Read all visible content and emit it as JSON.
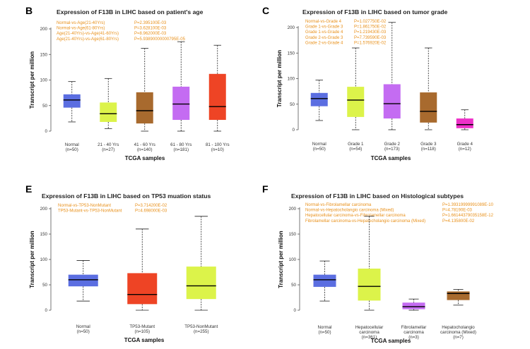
{
  "chart_data": [
    {
      "type": "boxplot",
      "panel": "B",
      "title": "Expression of F13B in LIHC based on patient's age",
      "xlabel": "TCGA samples",
      "ylabel": "Transcript per million",
      "ylim": [
        0,
        200
      ],
      "yticks": [
        0,
        50,
        100,
        150,
        200
      ],
      "annotations": [
        {
          "label": "Normal-vs-Age(21-40Yrs)",
          "p": "P=2.395100E-03"
        },
        {
          "label": "Normal-vs-Age(61-80Yrs)",
          "p": "P=3.628100E-03"
        },
        {
          "label": "Age(21-40Yrs)-vs-Age(41-60Yrs)",
          "p": "P=8.962000E-03"
        },
        {
          "label": "Age(21-40Yrs)-vs-Age(61-80Yrs)",
          "p": "P=5.93890000000795E-05"
        }
      ],
      "boxes": [
        {
          "label": "Normal",
          "n": "(n=50)",
          "color": "#5b6ee1",
          "min": 18,
          "q1": 46,
          "median": 61,
          "q3": 72,
          "max": 97
        },
        {
          "label": "21 - 40 Yrs",
          "n": "(n=27)",
          "color": "#dcf34a",
          "min": 5,
          "q1": 18,
          "median": 34,
          "q3": 56,
          "max": 103
        },
        {
          "label": "41 - 60 Yrs",
          "n": "(n=140)",
          "color": "#a86a2e",
          "min": 0,
          "q1": 15,
          "median": 40,
          "q3": 76,
          "max": 162
        },
        {
          "label": "61 - 80 Yrs",
          "n": "(n=181)",
          "color": "#c46cf2",
          "min": 0,
          "q1": 22,
          "median": 53,
          "q3": 87,
          "max": 175
        },
        {
          "label": "81 - 100 Yrs",
          "n": "(n=10)",
          "color": "#ee4425",
          "min": 0,
          "q1": 22,
          "median": 48,
          "q3": 112,
          "max": 168
        }
      ]
    },
    {
      "type": "boxplot",
      "panel": "C",
      "title": "Expression of F13B in LIHC based on tumor grade",
      "xlabel": "TCGA samples",
      "ylabel": "Transcript per million",
      "ylim": [
        0,
        200
      ],
      "yticks": [
        0,
        50,
        100,
        150,
        200
      ],
      "annotations": [
        {
          "label": "Normal-vs-Grade 4",
          "p": "P=1.027750E-02"
        },
        {
          "label": "Grade 1-vs-Grade 3",
          "p": "P=1.861750E-02"
        },
        {
          "label": "Grade 1-vs-Grade 4",
          "p": "P=1.219430E-03"
        },
        {
          "label": "Grade 2-vs-Grade 3",
          "p": "P=7.739590E-03"
        },
        {
          "label": "Grade 2-vs-Grade 4",
          "p": "P=1.576920E-02"
        }
      ],
      "boxes": [
        {
          "label": "Normal",
          "n": "(n=50)",
          "color": "#5b6ee1",
          "min": 18,
          "q1": 46,
          "median": 61,
          "q3": 72,
          "max": 97
        },
        {
          "label": "Grade 1",
          "n": "(n=54)",
          "color": "#dcf34a",
          "min": 0,
          "q1": 25,
          "median": 58,
          "q3": 84,
          "max": 160
        },
        {
          "label": "Grade 2",
          "n": "(n=173)",
          "color": "#c46cf2",
          "min": 0,
          "q1": 22,
          "median": 51,
          "q3": 89,
          "max": 210
        },
        {
          "label": "Grade 3",
          "n": "(n=118)",
          "color": "#a86a2e",
          "min": 0,
          "q1": 14,
          "median": 36,
          "q3": 73,
          "max": 160
        },
        {
          "label": "Grade 4",
          "n": "(n=12)",
          "color": "#ee30c8",
          "min": 0,
          "q1": 3,
          "median": 10,
          "q3": 22,
          "max": 39
        }
      ]
    },
    {
      "type": "boxplot",
      "panel": "E",
      "title": "Expression of F13B in LIHC based on TP53 muation status",
      "xlabel": "TCGA samples",
      "ylabel": "Transcript per million",
      "ylim": [
        0,
        200
      ],
      "yticks": [
        0,
        50,
        100,
        150,
        200
      ],
      "annotations": [
        {
          "label": "Normal-vs-TP53-NonMutant",
          "p": "P=3.714200E-02"
        },
        {
          "label": "TP53-Mutant-vs-TP53-NonMutant",
          "p": "P=4.698000E-03"
        }
      ],
      "boxes": [
        {
          "label": "Normal",
          "n": "(n=50)",
          "color": "#5b6ee1",
          "min": 18,
          "q1": 47,
          "median": 60,
          "q3": 70,
          "max": 98
        },
        {
          "label": "TP53-Mutant",
          "n": "(n=105)",
          "color": "#ee4425",
          "min": 0,
          "q1": 12,
          "median": 31,
          "q3": 73,
          "max": 160
        },
        {
          "label": "TP53-NonMutant",
          "n": "(n=255)",
          "color": "#dcf34a",
          "min": 0,
          "q1": 22,
          "median": 48,
          "q3": 86,
          "max": 185
        }
      ]
    },
    {
      "type": "boxplot",
      "panel": "F",
      "title": "Expression of F13B in LIHC based on Histological subtypes",
      "xlabel": "TCGA samples",
      "ylabel": "Transcript per million",
      "ylim": [
        0,
        200
      ],
      "yticks": [
        0,
        50,
        100,
        150,
        200
      ],
      "annotations": [
        {
          "label": "Normal-vs-Fibrolamellar carcinoma",
          "p": "P=1.39319999991089E-10"
        },
        {
          "label": "Normal-vs-Hepatocholangio carcinoma (Mixed)",
          "p": "P=4.78190E-03"
        },
        {
          "label": "Hepatocellular carcinoma-vs-Fibrolamellar carcinoma",
          "p": "P=1.66144379035158E-12"
        },
        {
          "label": "Fibrolamellar carcinoma-vs-Hepatocholangio carcinoma (Mixed)",
          "p": "P=4.135800E-02"
        }
      ],
      "boxes": [
        {
          "label": [
            "Normal"
          ],
          "n": "(n=50)",
          "color": "#5b6ee1",
          "min": 18,
          "q1": 46,
          "median": 60,
          "q3": 70,
          "max": 97
        },
        {
          "label": [
            "Hepatocellular",
            "carcinoma"
          ],
          "n": "(n=361)",
          "color": "#dcf34a",
          "min": 0,
          "q1": 19,
          "median": 47,
          "q3": 82,
          "max": 185
        },
        {
          "label": [
            "Fibrolamellar",
            "carcinoma"
          ],
          "n": "(n=3)",
          "color": "#c46cf2",
          "min": 0,
          "q1": 2,
          "median": 7,
          "q3": 15,
          "max": 22
        },
        {
          "label": [
            "Hepatocholangio",
            "carcinoma (Mixed)"
          ],
          "n": "(n=7)",
          "color": "#a86a2e",
          "min": 10,
          "q1": 20,
          "median": 33,
          "q3": 37,
          "max": 41
        }
      ]
    }
  ]
}
